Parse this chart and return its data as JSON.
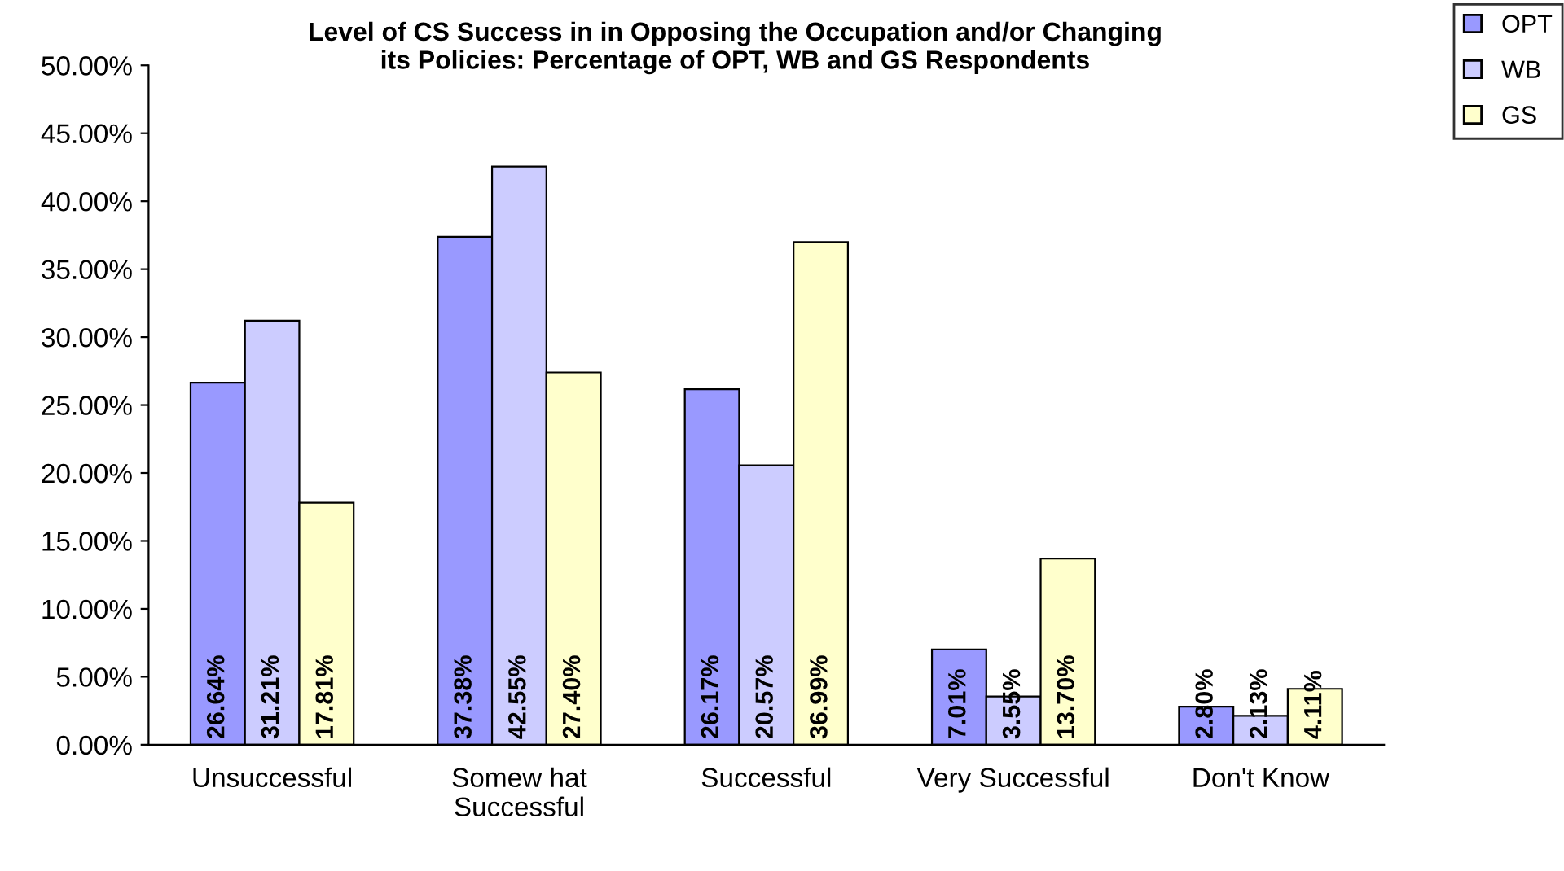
{
  "chart_data": {
    "type": "bar",
    "title": "Level of CS Success in in Opposing the Occupation and/or Changing\nits Policies: Percentage of OPT, WB and GS Respondents",
    "categories": [
      "Unsuccessful",
      "Somew hat\nSuccessful",
      "Successful",
      "Very Successful",
      "Don't Know"
    ],
    "series": [
      {
        "name": "OPT",
        "color": "#9999ff",
        "values": [
          26.64,
          37.38,
          26.17,
          7.01,
          2.8
        ],
        "value_labels": [
          "26.64%",
          "37.38%",
          "26.17%",
          "7.01%",
          "2.80%"
        ]
      },
      {
        "name": "WB",
        "color": "#ccccff",
        "values": [
          31.21,
          42.55,
          20.57,
          3.55,
          2.13
        ],
        "value_labels": [
          "31.21%",
          "42.55%",
          "20.57%",
          "3.55%",
          "2.13%"
        ]
      },
      {
        "name": "GS",
        "color": "#ffffcc",
        "values": [
          17.81,
          27.4,
          36.99,
          13.7,
          4.11
        ],
        "value_labels": [
          "17.81%",
          "27.40%",
          "36.99%",
          "13.70%",
          "4.11%"
        ]
      }
    ],
    "ylim": [
      0,
      50
    ],
    "yticks": [
      {
        "value": 0,
        "label": "0.00%"
      },
      {
        "value": 5,
        "label": "5.00%"
      },
      {
        "value": 10,
        "label": "10.00%"
      },
      {
        "value": 15,
        "label": "15.00%"
      },
      {
        "value": 20,
        "label": "20.00%"
      },
      {
        "value": 25,
        "label": "25.00%"
      },
      {
        "value": 30,
        "label": "30.00%"
      },
      {
        "value": 35,
        "label": "35.00%"
      },
      {
        "value": 40,
        "label": "40.00%"
      },
      {
        "value": 45,
        "label": "45.00%"
      },
      {
        "value": 50,
        "label": "50.00%"
      }
    ],
    "grid": false,
    "legend": "top right"
  }
}
